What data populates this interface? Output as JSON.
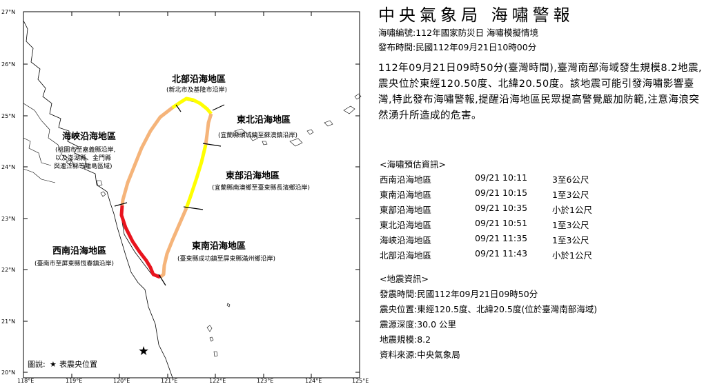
{
  "map": {
    "lat_labels": [
      "27°N",
      "26°N",
      "25°N",
      "24°N",
      "23°N",
      "22°N",
      "21°N",
      "20°N"
    ],
    "lon_labels": [
      "118°E",
      "119°E",
      "120°E",
      "121°E",
      "122°E",
      "123°E",
      "124°E",
      "125°E"
    ],
    "regions": {
      "north": {
        "name": "北部沿海地區",
        "desc": "(新北市及基隆市沿岸)"
      },
      "northeast": {
        "name": "東北沿海地區",
        "desc": "(宜蘭縣頭城鎮至蘇澳鎮沿岸)"
      },
      "strait": {
        "name": "海峽沿海地區",
        "desc_lines": [
          "(桃園市至嘉義縣沿岸,",
          "以及澎湖縣、金門縣",
          "與連江縣等離島區域)"
        ]
      },
      "east": {
        "name": "東部沿海地區",
        "desc": "(宜蘭縣南澳鄉至臺東縣長濱鄉沿岸)"
      },
      "southeast": {
        "name": "東南沿海地區",
        "desc": "(臺東縣成功鎮至屏東縣滿州鄉沿岸)"
      },
      "southwest": {
        "name": "西南沿海地區",
        "desc": "(臺南市至屏東縣恆春鎮沿岸)"
      }
    },
    "legend": {
      "label": "圖說:",
      "star": "★",
      "text": "表震央位置"
    },
    "colors": {
      "red": "#e8141e",
      "yellow": "#ffff00",
      "orange": "#f5b47a",
      "land": "#ffffff",
      "border": "#000000"
    }
  },
  "panel": {
    "title": "中央氣象局 海嘯警報",
    "number_line": "海嘯編號:112年國家防災日 海嘯模擬情境",
    "issue_line": "發布時間:民國112年09月21日10時00分",
    "body": "112年09月21日09時50分(臺灣時間),臺灣南部海域發生規模8.2地震,震央位於東經120.50度、北緯20.50度。該地震可能引發海嘯影響臺灣,特此發布海嘯警報,提醒沿海地區民眾提高警覺嚴加防範,注意海浪突然湧升所造成的危害。",
    "forecast_header": "<海嘯預估資訊>",
    "forecast": [
      {
        "region": "西南沿海地區",
        "time": "09/21 10:11",
        "height": "3至6公尺"
      },
      {
        "region": "東南沿海地區",
        "time": "09/21 10:15",
        "height": "1至3公尺"
      },
      {
        "region": "東部沿海地區",
        "time": "09/21 10:35",
        "height": "小於1公尺"
      },
      {
        "region": "東北沿海地區",
        "time": "09/21 10:51",
        "height": "1至3公尺"
      },
      {
        "region": "海峽沿海地區",
        "time": "09/21 11:35",
        "height": "1至3公尺"
      },
      {
        "region": "北部沿海地區",
        "time": "09/21 11:43",
        "height": "小於1公尺"
      }
    ],
    "quake_header": "<地震資訊>",
    "quake": [
      "發震時間:民國112年09月21日09時50分",
      "震央位置:東經120.5度、北緯20.5度(位於臺灣南部海域)",
      "震源深度:30.0 公里",
      "地震規模:8.2",
      "資料來源:中央氣象局"
    ]
  }
}
